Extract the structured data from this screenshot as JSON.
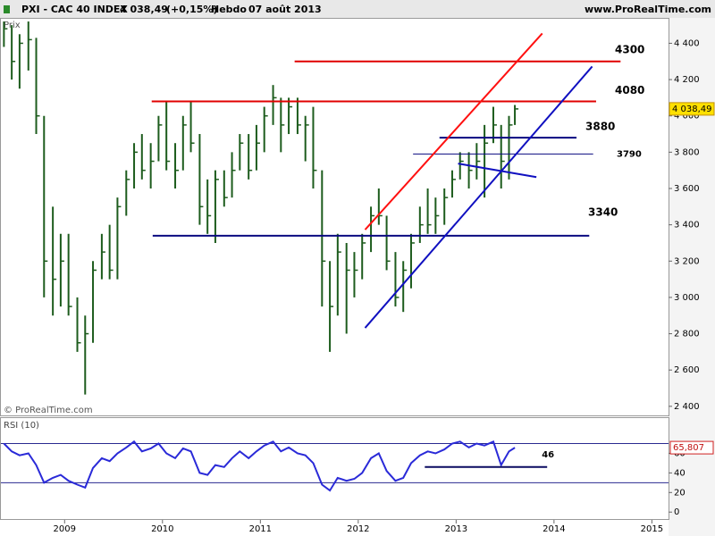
{
  "chart_data": {
    "type": "ohlc",
    "title": "PXI - CAC 40 INDEX",
    "last": {
      "value": 4038.49,
      "label": "4 038,49"
    },
    "change": "(+0,15%)",
    "period": "Hebdo",
    "date": "07 août 2013",
    "source": "www.ProRealTime.com",
    "y_label": "Prix",
    "watermark": "© ProRealTime.com",
    "color": "#1d5c1d",
    "x": [
      2008.38,
      2008.46,
      2008.54,
      2008.63,
      2008.71,
      2008.79,
      2008.88,
      2008.96,
      2009.04,
      2009.13,
      2009.21,
      2009.29,
      2009.38,
      2009.46,
      2009.54,
      2009.63,
      2009.71,
      2009.79,
      2009.88,
      2009.96,
      2010.04,
      2010.13,
      2010.21,
      2010.29,
      2010.38,
      2010.46,
      2010.54,
      2010.63,
      2010.71,
      2010.79,
      2010.88,
      2010.96,
      2011.04,
      2011.13,
      2011.21,
      2011.29,
      2011.38,
      2011.46,
      2011.54,
      2011.63,
      2011.71,
      2011.79,
      2011.88,
      2011.96,
      2012.04,
      2012.13,
      2012.21,
      2012.29,
      2012.38,
      2012.46,
      2012.54,
      2012.63,
      2012.71,
      2012.79,
      2012.88,
      2012.96,
      2013.04,
      2013.13,
      2013.21,
      2013.29,
      2013.38,
      2013.46,
      2013.54,
      2013.6
    ],
    "low": [
      4380,
      4200,
      4150,
      4250,
      3900,
      3000,
      2900,
      2950,
      2900,
      2700,
      2465,
      2750,
      3100,
      3100,
      3100,
      3450,
      3600,
      3650,
      3600,
      3750,
      3700,
      3600,
      3700,
      3800,
      3400,
      3350,
      3300,
      3500,
      3550,
      3700,
      3650,
      3700,
      3800,
      3950,
      3800,
      3900,
      3900,
      3750,
      3600,
      2950,
      2700,
      2900,
      2800,
      3000,
      3100,
      3250,
      3400,
      3150,
      2950,
      2920,
      3050,
      3300,
      3350,
      3350,
      3400,
      3550,
      3650,
      3600,
      3650,
      3550,
      3850,
      3600,
      3650,
      3950
    ],
    "high": [
      4520,
      4500,
      4450,
      4520,
      4430,
      4000,
      3500,
      3350,
      3350,
      3000,
      2900,
      3200,
      3350,
      3400,
      3550,
      3700,
      3850,
      3900,
      3850,
      4000,
      4080,
      3850,
      4000,
      4080,
      3900,
      3650,
      3700,
      3700,
      3800,
      3900,
      3900,
      3950,
      4050,
      4170,
      4100,
      4100,
      4100,
      4000,
      4050,
      3700,
      3200,
      3350,
      3300,
      3250,
      3350,
      3500,
      3600,
      3450,
      3250,
      3200,
      3350,
      3500,
      3600,
      3550,
      3600,
      3700,
      3800,
      3800,
      3850,
      3950,
      4050,
      3950,
      4000,
      4060
    ],
    "close": [
      4480,
      4300,
      4400,
      4420,
      4000,
      3200,
      3100,
      3200,
      2950,
      2750,
      2800,
      3150,
      3250,
      3150,
      3500,
      3650,
      3800,
      3700,
      3750,
      3950,
      3750,
      3700,
      3950,
      3850,
      3500,
      3450,
      3650,
      3550,
      3700,
      3850,
      3700,
      3850,
      4000,
      4100,
      3950,
      4050,
      3950,
      3950,
      3700,
      3200,
      2950,
      3250,
      3150,
      3150,
      3300,
      3450,
      3450,
      3200,
      3000,
      3150,
      3300,
      3400,
      3400,
      3450,
      3550,
      3650,
      3750,
      3700,
      3750,
      3850,
      3950,
      3750,
      3950,
      4038.49
    ],
    "xlim": [
      2008.34,
      2015.17
    ],
    "xticks": [
      2009,
      2010,
      2011,
      2012,
      2013,
      2014,
      2015
    ],
    "ylim": [
      2350,
      4540
    ],
    "yticks": [
      {
        "value": 2400,
        "label": "2 400"
      },
      {
        "value": 2600,
        "label": "2 600"
      },
      {
        "value": 2800,
        "label": "2 800"
      },
      {
        "value": 3000,
        "label": "3 000"
      },
      {
        "value": 3200,
        "label": "3 200"
      },
      {
        "value": 3400,
        "label": "3 400"
      },
      {
        "value": 3600,
        "label": "3 600"
      },
      {
        "value": 3800,
        "label": "3 800"
      },
      {
        "value": 4000,
        "label": "4 000"
      },
      {
        "value": 4200,
        "label": "4 200"
      },
      {
        "value": 4400,
        "label": "4 400"
      }
    ],
    "levels": [
      {
        "y": 4300,
        "x": [
          2011.35,
          2014.68
        ],
        "color": "#e00000",
        "width": 2
      },
      {
        "y": 4080,
        "x": [
          2009.89,
          2014.43
        ],
        "color": "#e00000",
        "width": 2
      },
      {
        "y": 3880,
        "x": [
          2012.83,
          2014.23
        ],
        "color": "#0a0a80",
        "width": 2
      },
      {
        "y": 3790,
        "x": [
          2012.56,
          2014.4
        ],
        "color": "#0a0a80",
        "width": 1
      },
      {
        "y": 3340,
        "x": [
          2009.9,
          2014.36
        ],
        "color": "#0a0a80",
        "width": 2
      }
    ],
    "trendlines": [
      {
        "x": [
          2012.07,
          2013.88
        ],
        "y": [
          3373,
          4454
        ],
        "color": "#ff1010"
      },
      {
        "x": [
          2012.07,
          2014.39
        ],
        "y": [
          2832,
          4272
        ],
        "color": "#1010c0"
      },
      {
        "x": [
          2013.02,
          2013.82
        ],
        "y": [
          3737,
          3663
        ],
        "color": "#1010c0"
      }
    ],
    "rsi": {
      "title": "RSI (10)",
      "color": "#2a2ad8",
      "last_label": "65,807",
      "ylim": [
        -8,
        96
      ],
      "yticks": [
        0,
        20,
        40,
        60
      ],
      "levels": [
        70,
        30
      ],
      "values": [
        70,
        62,
        58,
        60,
        48,
        30,
        35,
        38,
        32,
        28,
        25,
        45,
        55,
        52,
        60,
        66,
        72,
        62,
        65,
        70,
        60,
        55,
        65,
        62,
        40,
        38,
        48,
        46,
        55,
        62,
        55,
        62,
        68,
        72,
        62,
        66,
        60,
        58,
        50,
        28,
        22,
        35,
        32,
        34,
        40,
        55,
        60,
        42,
        32,
        35,
        50,
        58,
        62,
        60,
        64,
        70,
        72,
        66,
        70,
        68,
        72,
        48,
        62,
        65.807
      ],
      "support": {
        "y": 46,
        "x": [
          2012.68,
          2013.93
        ]
      }
    }
  }
}
